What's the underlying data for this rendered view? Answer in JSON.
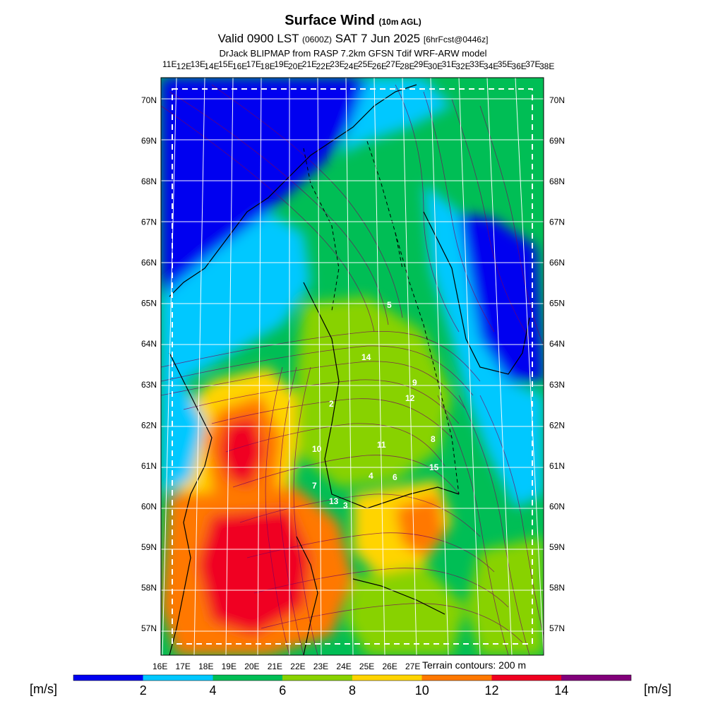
{
  "title": {
    "main": "Surface Wind",
    "main_suffix": "(10m AGL)",
    "valid_prefix": "Valid 0900 LST",
    "valid_z": "(0600Z)",
    "valid_date": "SAT 7 Jun 2025",
    "forecast_tag": "[6hrFcst@0446z]",
    "source": "DrJack BLIPMAP from RASP 7.2km GFSN Tdif WRF-ARW model"
  },
  "top_lon_labels": [
    "11E",
    "12E",
    "13E",
    "14E",
    "15E",
    "16E",
    "17E",
    "18E",
    "19E",
    "20E",
    "21E",
    "22E",
    "23E",
    "24E",
    "25E",
    "26E",
    "27E",
    "28E",
    "29E",
    "30E",
    "31E",
    "32E",
    "33E",
    "34E",
    "35E",
    "36E",
    "37E",
    "38E"
  ],
  "bottom_lon_labels": [
    "16E",
    "17E",
    "18E",
    "19E",
    "20E",
    "21E",
    "22E",
    "23E",
    "24E",
    "25E",
    "26E",
    "27E"
  ],
  "lat_labels": [
    "70N",
    "69N",
    "68N",
    "67N",
    "66N",
    "65N",
    "64N",
    "63N",
    "62N",
    "61N",
    "60N",
    "59N",
    "58N",
    "57N"
  ],
  "field_labels": [
    "5",
    "14",
    "9",
    "12",
    "2",
    "11",
    "10",
    "8",
    "15",
    "4",
    "6",
    "7",
    "13",
    "3"
  ],
  "terrain_note": "Terrain contours: 200 m",
  "colorbar": {
    "unit": "[m/s]",
    "ticks": [
      "2",
      "4",
      "6",
      "8",
      "10",
      "12",
      "14"
    ],
    "colors": [
      "#0000f0",
      "#00c8ff",
      "#00be55",
      "#88d200",
      "#ffd400",
      "#ff7800",
      "#f00020",
      "#82007a"
    ]
  },
  "field_colors": {
    "calm": "#0000f0",
    "light": "#00c8ff",
    "moderate": "#00be55",
    "fresh": "#88d200",
    "strong": "#ffd400",
    "very_strong": "#ff7800",
    "gale": "#f00020",
    "streamline": "#7a0060"
  }
}
